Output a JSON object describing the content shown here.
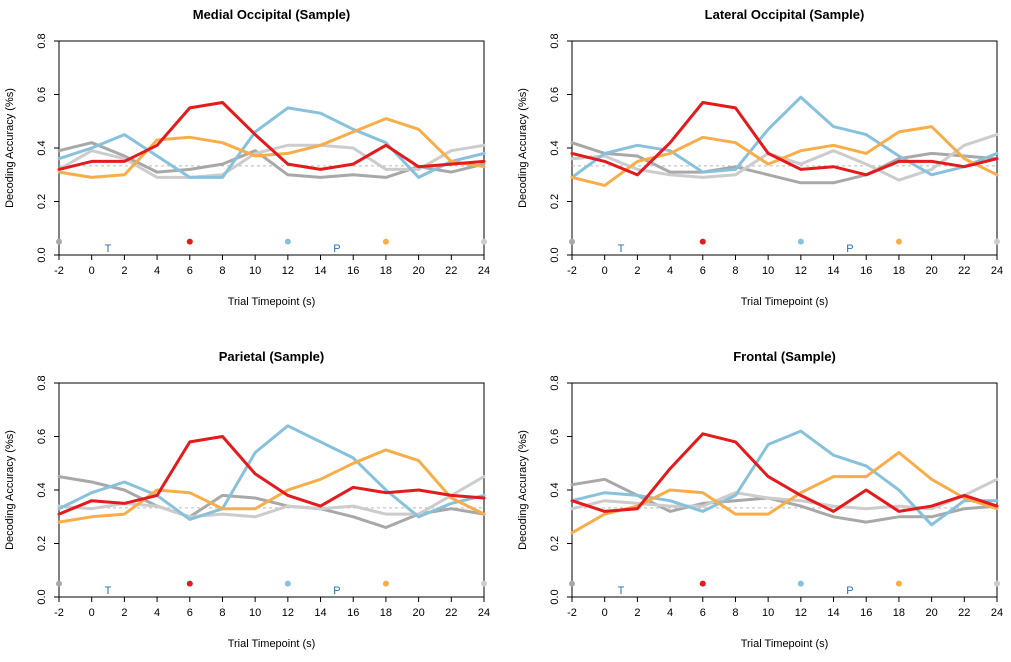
{
  "colors": {
    "red": "#e41a1c",
    "blue": "#87c1dc",
    "orange": "#f7ae4a",
    "gray_dark": "#a8a8a8",
    "gray_light": "#cccccc",
    "chance": "#bbbbbb",
    "marker_text": "#2d6fa8"
  },
  "chart_data": [
    {
      "type": "line",
      "title": "Medial Occipital (Sample)",
      "xlabel": "Trial Timepoint (s)",
      "ylabel": "Decoding Accuracy (%s)",
      "xlim": [
        -2,
        24
      ],
      "ylim": [
        0,
        0.8
      ],
      "xticks": [
        "-2",
        "0",
        "2",
        "4",
        "6",
        "8",
        "10",
        "12",
        "14",
        "16",
        "18",
        "20",
        "22",
        "24"
      ],
      "yticks": [
        "0.0",
        "0.2",
        "0.4",
        "0.6",
        "0.8"
      ],
      "chance_level": 0.333,
      "markers": [
        {
          "label": "T",
          "x": 1
        },
        {
          "label": "P",
          "x": 15
        }
      ],
      "dots": [
        {
          "x": -2,
          "color": "gray_dark"
        },
        {
          "x": 6,
          "color": "red"
        },
        {
          "x": 12,
          "color": "blue"
        },
        {
          "x": 18,
          "color": "orange"
        },
        {
          "x": 24,
          "color": "gray_light"
        }
      ],
      "x": [
        -2,
        0,
        2,
        4,
        6,
        8,
        10,
        12,
        14,
        16,
        18,
        20,
        22,
        24
      ],
      "series": [
        {
          "color": "gray_dark",
          "values": [
            0.39,
            0.42,
            0.37,
            0.31,
            0.32,
            0.34,
            0.39,
            0.3,
            0.29,
            0.3,
            0.29,
            0.33,
            0.31,
            0.34
          ]
        },
        {
          "color": "gray_light",
          "values": [
            0.32,
            0.39,
            0.36,
            0.29,
            0.29,
            0.3,
            0.38,
            0.41,
            0.41,
            0.4,
            0.32,
            0.32,
            0.39,
            0.41
          ]
        },
        {
          "color": "blue",
          "values": [
            0.36,
            0.4,
            0.45,
            0.37,
            0.29,
            0.29,
            0.46,
            0.55,
            0.53,
            0.47,
            0.42,
            0.29,
            0.35,
            0.38
          ]
        },
        {
          "color": "orange",
          "values": [
            0.31,
            0.29,
            0.3,
            0.43,
            0.44,
            0.42,
            0.37,
            0.38,
            0.41,
            0.46,
            0.51,
            0.47,
            0.35,
            0.33
          ]
        },
        {
          "color": "red",
          "values": [
            0.32,
            0.35,
            0.35,
            0.41,
            0.55,
            0.57,
            0.45,
            0.34,
            0.32,
            0.34,
            0.41,
            0.33,
            0.34,
            0.35
          ]
        }
      ]
    },
    {
      "type": "line",
      "title": "Lateral Occipital (Sample)",
      "xlabel": "Trial Timepoint (s)",
      "ylabel": "Decoding Accuracy (%s)",
      "xlim": [
        -2,
        24
      ],
      "ylim": [
        0,
        0.8
      ],
      "xticks": [
        "-2",
        "0",
        "2",
        "4",
        "6",
        "8",
        "10",
        "12",
        "14",
        "16",
        "18",
        "20",
        "22",
        "24"
      ],
      "yticks": [
        "0.0",
        "0.2",
        "0.4",
        "0.6",
        "0.8"
      ],
      "chance_level": 0.333,
      "markers": [
        {
          "label": "T",
          "x": 1
        },
        {
          "label": "P",
          "x": 15
        }
      ],
      "dots": [
        {
          "x": -2,
          "color": "gray_dark"
        },
        {
          "x": 6,
          "color": "red"
        },
        {
          "x": 12,
          "color": "blue"
        },
        {
          "x": 18,
          "color": "orange"
        },
        {
          "x": 24,
          "color": "gray_light"
        }
      ],
      "x": [
        -2,
        0,
        2,
        4,
        6,
        8,
        10,
        12,
        14,
        16,
        18,
        20,
        22,
        24
      ],
      "series": [
        {
          "color": "gray_dark",
          "values": [
            0.42,
            0.38,
            0.37,
            0.31,
            0.31,
            0.33,
            0.3,
            0.27,
            0.27,
            0.3,
            0.36,
            0.38,
            0.37,
            0.36
          ]
        },
        {
          "color": "gray_light",
          "values": [
            0.36,
            0.37,
            0.32,
            0.3,
            0.29,
            0.3,
            0.38,
            0.34,
            0.39,
            0.34,
            0.28,
            0.32,
            0.41,
            0.45
          ]
        },
        {
          "color": "blue",
          "values": [
            0.29,
            0.38,
            0.41,
            0.39,
            0.31,
            0.32,
            0.47,
            0.59,
            0.48,
            0.45,
            0.37,
            0.3,
            0.33,
            0.38
          ]
        },
        {
          "color": "orange",
          "values": [
            0.29,
            0.26,
            0.35,
            0.38,
            0.44,
            0.42,
            0.34,
            0.39,
            0.41,
            0.38,
            0.46,
            0.48,
            0.36,
            0.3
          ]
        },
        {
          "color": "red",
          "values": [
            0.38,
            0.35,
            0.3,
            0.42,
            0.57,
            0.55,
            0.38,
            0.32,
            0.33,
            0.3,
            0.35,
            0.35,
            0.33,
            0.36
          ]
        }
      ]
    },
    {
      "type": "line",
      "title": "Parietal (Sample)",
      "xlabel": "Trial Timepoint (s)",
      "ylabel": "Decoding Accuracy (%s)",
      "xlim": [
        -2,
        24
      ],
      "ylim": [
        0,
        0.8
      ],
      "xticks": [
        "-2",
        "0",
        "2",
        "4",
        "6",
        "8",
        "10",
        "12",
        "14",
        "16",
        "18",
        "20",
        "22",
        "24"
      ],
      "yticks": [
        "0.0",
        "0.2",
        "0.4",
        "0.6",
        "0.8"
      ],
      "chance_level": 0.333,
      "markers": [
        {
          "label": "T",
          "x": 1
        },
        {
          "label": "P",
          "x": 15
        }
      ],
      "dots": [
        {
          "x": -2,
          "color": "gray_dark"
        },
        {
          "x": 6,
          "color": "red"
        },
        {
          "x": 12,
          "color": "blue"
        },
        {
          "x": 18,
          "color": "orange"
        },
        {
          "x": 24,
          "color": "gray_light"
        }
      ],
      "x": [
        -2,
        0,
        2,
        4,
        6,
        8,
        10,
        12,
        14,
        16,
        18,
        20,
        22,
        24
      ],
      "series": [
        {
          "color": "gray_dark",
          "values": [
            0.45,
            0.43,
            0.4,
            0.34,
            0.3,
            0.38,
            0.37,
            0.34,
            0.33,
            0.3,
            0.26,
            0.31,
            0.33,
            0.31
          ]
        },
        {
          "color": "gray_light",
          "values": [
            0.34,
            0.33,
            0.35,
            0.34,
            0.3,
            0.31,
            0.3,
            0.34,
            0.33,
            0.34,
            0.31,
            0.31,
            0.38,
            0.45
          ]
        },
        {
          "color": "blue",
          "values": [
            0.33,
            0.39,
            0.43,
            0.38,
            0.29,
            0.33,
            0.54,
            0.64,
            0.58,
            0.52,
            0.4,
            0.3,
            0.35,
            0.38
          ]
        },
        {
          "color": "orange",
          "values": [
            0.28,
            0.3,
            0.31,
            0.4,
            0.39,
            0.33,
            0.33,
            0.4,
            0.44,
            0.5,
            0.55,
            0.51,
            0.37,
            0.31
          ]
        },
        {
          "color": "red",
          "values": [
            0.31,
            0.36,
            0.35,
            0.38,
            0.58,
            0.6,
            0.46,
            0.38,
            0.34,
            0.41,
            0.39,
            0.4,
            0.38,
            0.37
          ]
        }
      ]
    },
    {
      "type": "line",
      "title": "Frontal (Sample)",
      "xlabel": "Trial Timepoint (s)",
      "ylabel": "Decoding Accuracy (%s)",
      "xlim": [
        -2,
        24
      ],
      "ylim": [
        0,
        0.8
      ],
      "xticks": [
        "-2",
        "0",
        "2",
        "4",
        "6",
        "8",
        "10",
        "12",
        "14",
        "16",
        "18",
        "20",
        "22",
        "24"
      ],
      "yticks": [
        "0.0",
        "0.2",
        "0.4",
        "0.6",
        "0.8"
      ],
      "chance_level": 0.333,
      "markers": [
        {
          "label": "T",
          "x": 1
        },
        {
          "label": "P",
          "x": 15
        }
      ],
      "dots": [
        {
          "x": -2,
          "color": "gray_dark"
        },
        {
          "x": 6,
          "color": "red"
        },
        {
          "x": 12,
          "color": "blue"
        },
        {
          "x": 18,
          "color": "orange"
        },
        {
          "x": 24,
          "color": "gray_light"
        }
      ],
      "x": [
        -2,
        0,
        2,
        4,
        6,
        8,
        10,
        12,
        14,
        16,
        18,
        20,
        22,
        24
      ],
      "series": [
        {
          "color": "gray_dark",
          "values": [
            0.42,
            0.44,
            0.38,
            0.32,
            0.35,
            0.36,
            0.37,
            0.34,
            0.3,
            0.28,
            0.3,
            0.3,
            0.33,
            0.34
          ]
        },
        {
          "color": "gray_light",
          "values": [
            0.33,
            0.36,
            0.35,
            0.34,
            0.34,
            0.39,
            0.37,
            0.36,
            0.34,
            0.33,
            0.34,
            0.33,
            0.38,
            0.44
          ]
        },
        {
          "color": "blue",
          "values": [
            0.36,
            0.39,
            0.38,
            0.36,
            0.32,
            0.38,
            0.57,
            0.62,
            0.53,
            0.49,
            0.4,
            0.27,
            0.36,
            0.36
          ]
        },
        {
          "color": "orange",
          "values": [
            0.24,
            0.31,
            0.34,
            0.4,
            0.39,
            0.31,
            0.31,
            0.39,
            0.45,
            0.45,
            0.54,
            0.44,
            0.37,
            0.33
          ]
        },
        {
          "color": "red",
          "values": [
            0.36,
            0.32,
            0.33,
            0.48,
            0.61,
            0.58,
            0.45,
            0.38,
            0.32,
            0.4,
            0.32,
            0.34,
            0.38,
            0.34
          ]
        }
      ]
    }
  ]
}
